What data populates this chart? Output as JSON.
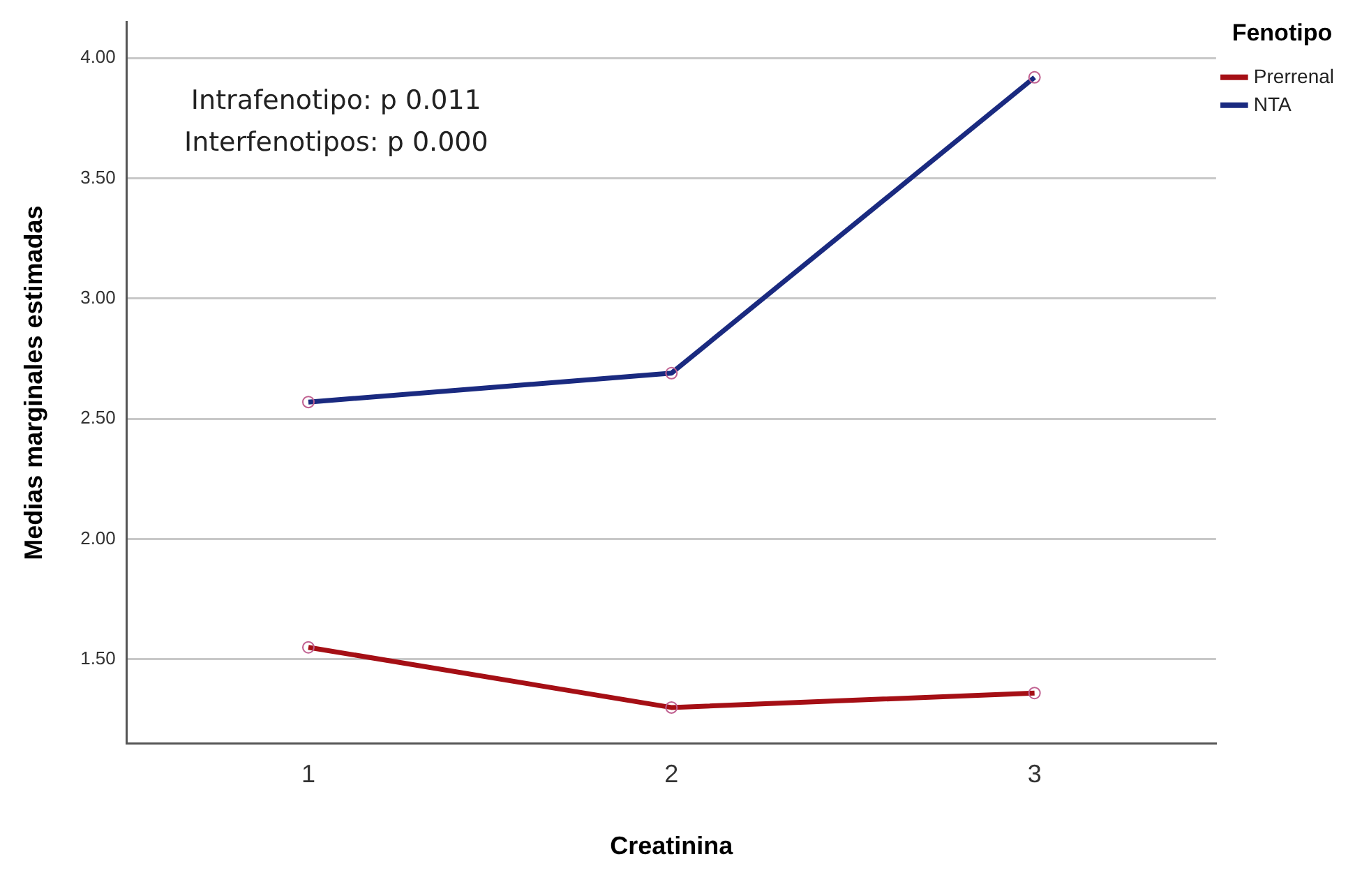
{
  "chart_data": {
    "type": "line",
    "xlabel": "Creatinina",
    "ylabel": "Medias marginales estimadas",
    "legend_title": "Fenotipo",
    "categories": [
      "1",
      "2",
      "3"
    ],
    "series": [
      {
        "name": "Prerrenal",
        "color": "#a50f15",
        "values": [
          1.55,
          1.3,
          1.36
        ]
      },
      {
        "name": "NTA",
        "color": "#1a2a80",
        "values": [
          2.57,
          2.69,
          3.92
        ]
      }
    ],
    "ylim": [
      1.15,
      4.15
    ],
    "yticks": [
      {
        "value": 1.5,
        "label": "1.50"
      },
      {
        "value": 2,
        "label": "2.00"
      },
      {
        "value": 2.5,
        "label": "2.50"
      },
      {
        "value": 3,
        "label": "3.00"
      },
      {
        "value": 3.5,
        "label": "3.50"
      },
      {
        "value": 4,
        "label": "4.00"
      }
    ],
    "grid": "y",
    "legend": "top right",
    "marker": "circle",
    "line_style": "solid",
    "annotations": [
      "Intrafenotipo: p 0.011",
      "Interfenotipos: p 0.000"
    ]
  }
}
